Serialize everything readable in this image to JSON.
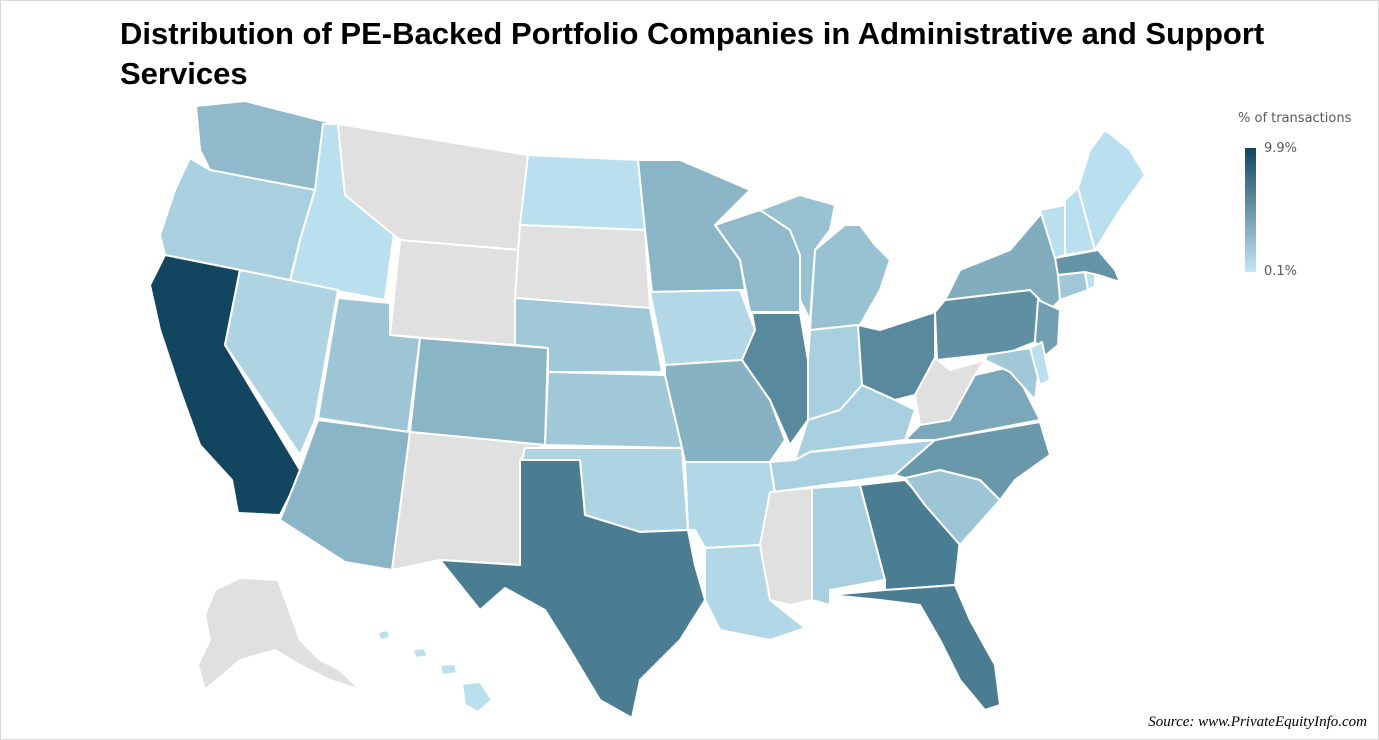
{
  "title": "Distribution of PE-Backed Portfolio Companies in Administrative and Support Services",
  "legend": {
    "title": "% of transactions",
    "max_label": "9.9%",
    "min_label": "0.1%"
  },
  "source": "Source: www.PrivateEquityInfo.com",
  "colors": {
    "scale_high": "#12455f",
    "scale_mid": "#4b7d92",
    "scale_low": "#c3e6f5",
    "no_data": "#e0e0e0",
    "background": "#ffffff"
  },
  "chart_data": {
    "type": "map",
    "unit": "% of transactions",
    "scale_range": [
      0.1,
      9.9
    ],
    "no_data_states": [
      "AK",
      "MT",
      "WY",
      "SD",
      "NM",
      "MS",
      "WV"
    ],
    "states": [
      {
        "code": "CA",
        "level": 1.0
      },
      {
        "code": "TX",
        "level": 0.7
      },
      {
        "code": "FL",
        "level": 0.7
      },
      {
        "code": "GA",
        "level": 0.7
      },
      {
        "code": "IL",
        "level": 0.62
      },
      {
        "code": "OH",
        "level": 0.62
      },
      {
        "code": "PA",
        "level": 0.58
      },
      {
        "code": "MA",
        "level": 0.55
      },
      {
        "code": "NC",
        "level": 0.52
      },
      {
        "code": "NJ",
        "level": 0.48
      },
      {
        "code": "VA",
        "level": 0.42
      },
      {
        "code": "NY",
        "level": 0.38
      },
      {
        "code": "MO",
        "level": 0.35
      },
      {
        "code": "AZ",
        "level": 0.33
      },
      {
        "code": "CO",
        "level": 0.33
      },
      {
        "code": "MN",
        "level": 0.33
      },
      {
        "code": "WI",
        "level": 0.3
      },
      {
        "code": "WA",
        "level": 0.3
      },
      {
        "code": "MI",
        "level": 0.25
      },
      {
        "code": "UT",
        "level": 0.22
      },
      {
        "code": "SC",
        "level": 0.22
      },
      {
        "code": "NE",
        "level": 0.2
      },
      {
        "code": "KS",
        "level": 0.2
      },
      {
        "code": "CT",
        "level": 0.2
      },
      {
        "code": "MD",
        "level": 0.2
      },
      {
        "code": "OR",
        "level": 0.15
      },
      {
        "code": "IN",
        "level": 0.15
      },
      {
        "code": "KY",
        "level": 0.15
      },
      {
        "code": "TN",
        "level": 0.15
      },
      {
        "code": "AL",
        "level": 0.15
      },
      {
        "code": "OK",
        "level": 0.12
      },
      {
        "code": "NV",
        "level": 0.12
      },
      {
        "code": "IA",
        "level": 0.1
      },
      {
        "code": "AR",
        "level": 0.1
      },
      {
        "code": "LA",
        "level": 0.1
      },
      {
        "code": "ID",
        "level": 0.05
      },
      {
        "code": "ND",
        "level": 0.05
      },
      {
        "code": "ME",
        "level": 0.05
      },
      {
        "code": "VT",
        "level": 0.05
      },
      {
        "code": "NH",
        "level": 0.05
      },
      {
        "code": "RI",
        "level": 0.05
      },
      {
        "code": "DE",
        "level": 0.05
      },
      {
        "code": "HI",
        "level": 0.05
      }
    ]
  }
}
